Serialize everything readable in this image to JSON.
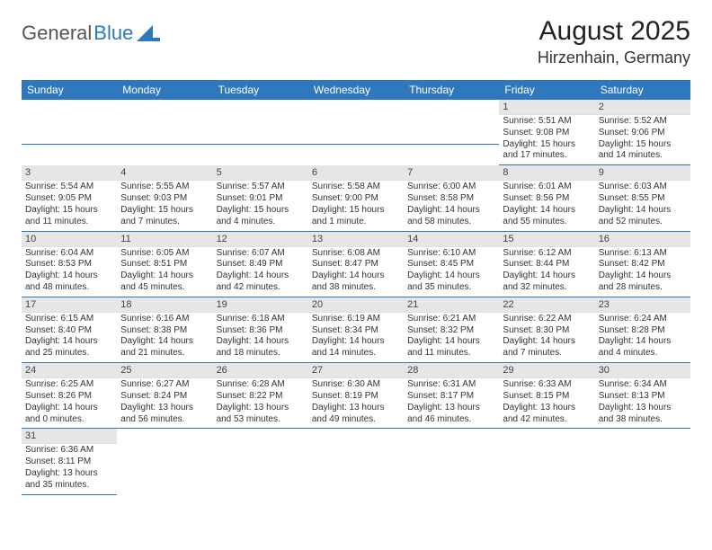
{
  "logo": {
    "part1": "General",
    "part2": "Blue"
  },
  "title": "August 2025",
  "location": "Hirzenhain, Germany",
  "header_bg": "#2f78bd",
  "weekdays": [
    "Sunday",
    "Monday",
    "Tuesday",
    "Wednesday",
    "Thursday",
    "Friday",
    "Saturday"
  ],
  "weeks": [
    [
      null,
      null,
      null,
      null,
      null,
      {
        "n": "1",
        "sunrise": "Sunrise: 5:51 AM",
        "sunset": "Sunset: 9:08 PM",
        "day": "Daylight: 15 hours and 17 minutes."
      },
      {
        "n": "2",
        "sunrise": "Sunrise: 5:52 AM",
        "sunset": "Sunset: 9:06 PM",
        "day": "Daylight: 15 hours and 14 minutes."
      }
    ],
    [
      {
        "n": "3",
        "sunrise": "Sunrise: 5:54 AM",
        "sunset": "Sunset: 9:05 PM",
        "day": "Daylight: 15 hours and 11 minutes."
      },
      {
        "n": "4",
        "sunrise": "Sunrise: 5:55 AM",
        "sunset": "Sunset: 9:03 PM",
        "day": "Daylight: 15 hours and 7 minutes."
      },
      {
        "n": "5",
        "sunrise": "Sunrise: 5:57 AM",
        "sunset": "Sunset: 9:01 PM",
        "day": "Daylight: 15 hours and 4 minutes."
      },
      {
        "n": "6",
        "sunrise": "Sunrise: 5:58 AM",
        "sunset": "Sunset: 9:00 PM",
        "day": "Daylight: 15 hours and 1 minute."
      },
      {
        "n": "7",
        "sunrise": "Sunrise: 6:00 AM",
        "sunset": "Sunset: 8:58 PM",
        "day": "Daylight: 14 hours and 58 minutes."
      },
      {
        "n": "8",
        "sunrise": "Sunrise: 6:01 AM",
        "sunset": "Sunset: 8:56 PM",
        "day": "Daylight: 14 hours and 55 minutes."
      },
      {
        "n": "9",
        "sunrise": "Sunrise: 6:03 AM",
        "sunset": "Sunset: 8:55 PM",
        "day": "Daylight: 14 hours and 52 minutes."
      }
    ],
    [
      {
        "n": "10",
        "sunrise": "Sunrise: 6:04 AM",
        "sunset": "Sunset: 8:53 PM",
        "day": "Daylight: 14 hours and 48 minutes."
      },
      {
        "n": "11",
        "sunrise": "Sunrise: 6:05 AM",
        "sunset": "Sunset: 8:51 PM",
        "day": "Daylight: 14 hours and 45 minutes."
      },
      {
        "n": "12",
        "sunrise": "Sunrise: 6:07 AM",
        "sunset": "Sunset: 8:49 PM",
        "day": "Daylight: 14 hours and 42 minutes."
      },
      {
        "n": "13",
        "sunrise": "Sunrise: 6:08 AM",
        "sunset": "Sunset: 8:47 PM",
        "day": "Daylight: 14 hours and 38 minutes."
      },
      {
        "n": "14",
        "sunrise": "Sunrise: 6:10 AM",
        "sunset": "Sunset: 8:45 PM",
        "day": "Daylight: 14 hours and 35 minutes."
      },
      {
        "n": "15",
        "sunrise": "Sunrise: 6:12 AM",
        "sunset": "Sunset: 8:44 PM",
        "day": "Daylight: 14 hours and 32 minutes."
      },
      {
        "n": "16",
        "sunrise": "Sunrise: 6:13 AM",
        "sunset": "Sunset: 8:42 PM",
        "day": "Daylight: 14 hours and 28 minutes."
      }
    ],
    [
      {
        "n": "17",
        "sunrise": "Sunrise: 6:15 AM",
        "sunset": "Sunset: 8:40 PM",
        "day": "Daylight: 14 hours and 25 minutes."
      },
      {
        "n": "18",
        "sunrise": "Sunrise: 6:16 AM",
        "sunset": "Sunset: 8:38 PM",
        "day": "Daylight: 14 hours and 21 minutes."
      },
      {
        "n": "19",
        "sunrise": "Sunrise: 6:18 AM",
        "sunset": "Sunset: 8:36 PM",
        "day": "Daylight: 14 hours and 18 minutes."
      },
      {
        "n": "20",
        "sunrise": "Sunrise: 6:19 AM",
        "sunset": "Sunset: 8:34 PM",
        "day": "Daylight: 14 hours and 14 minutes."
      },
      {
        "n": "21",
        "sunrise": "Sunrise: 6:21 AM",
        "sunset": "Sunset: 8:32 PM",
        "day": "Daylight: 14 hours and 11 minutes."
      },
      {
        "n": "22",
        "sunrise": "Sunrise: 6:22 AM",
        "sunset": "Sunset: 8:30 PM",
        "day": "Daylight: 14 hours and 7 minutes."
      },
      {
        "n": "23",
        "sunrise": "Sunrise: 6:24 AM",
        "sunset": "Sunset: 8:28 PM",
        "day": "Daylight: 14 hours and 4 minutes."
      }
    ],
    [
      {
        "n": "24",
        "sunrise": "Sunrise: 6:25 AM",
        "sunset": "Sunset: 8:26 PM",
        "day": "Daylight: 14 hours and 0 minutes."
      },
      {
        "n": "25",
        "sunrise": "Sunrise: 6:27 AM",
        "sunset": "Sunset: 8:24 PM",
        "day": "Daylight: 13 hours and 56 minutes."
      },
      {
        "n": "26",
        "sunrise": "Sunrise: 6:28 AM",
        "sunset": "Sunset: 8:22 PM",
        "day": "Daylight: 13 hours and 53 minutes."
      },
      {
        "n": "27",
        "sunrise": "Sunrise: 6:30 AM",
        "sunset": "Sunset: 8:19 PM",
        "day": "Daylight: 13 hours and 49 minutes."
      },
      {
        "n": "28",
        "sunrise": "Sunrise: 6:31 AM",
        "sunset": "Sunset: 8:17 PM",
        "day": "Daylight: 13 hours and 46 minutes."
      },
      {
        "n": "29",
        "sunrise": "Sunrise: 6:33 AM",
        "sunset": "Sunset: 8:15 PM",
        "day": "Daylight: 13 hours and 42 minutes."
      },
      {
        "n": "30",
        "sunrise": "Sunrise: 6:34 AM",
        "sunset": "Sunset: 8:13 PM",
        "day": "Daylight: 13 hours and 38 minutes."
      }
    ],
    [
      {
        "n": "31",
        "sunrise": "Sunrise: 6:36 AM",
        "sunset": "Sunset: 8:11 PM",
        "day": "Daylight: 13 hours and 35 minutes."
      },
      null,
      null,
      null,
      null,
      null,
      null
    ]
  ]
}
